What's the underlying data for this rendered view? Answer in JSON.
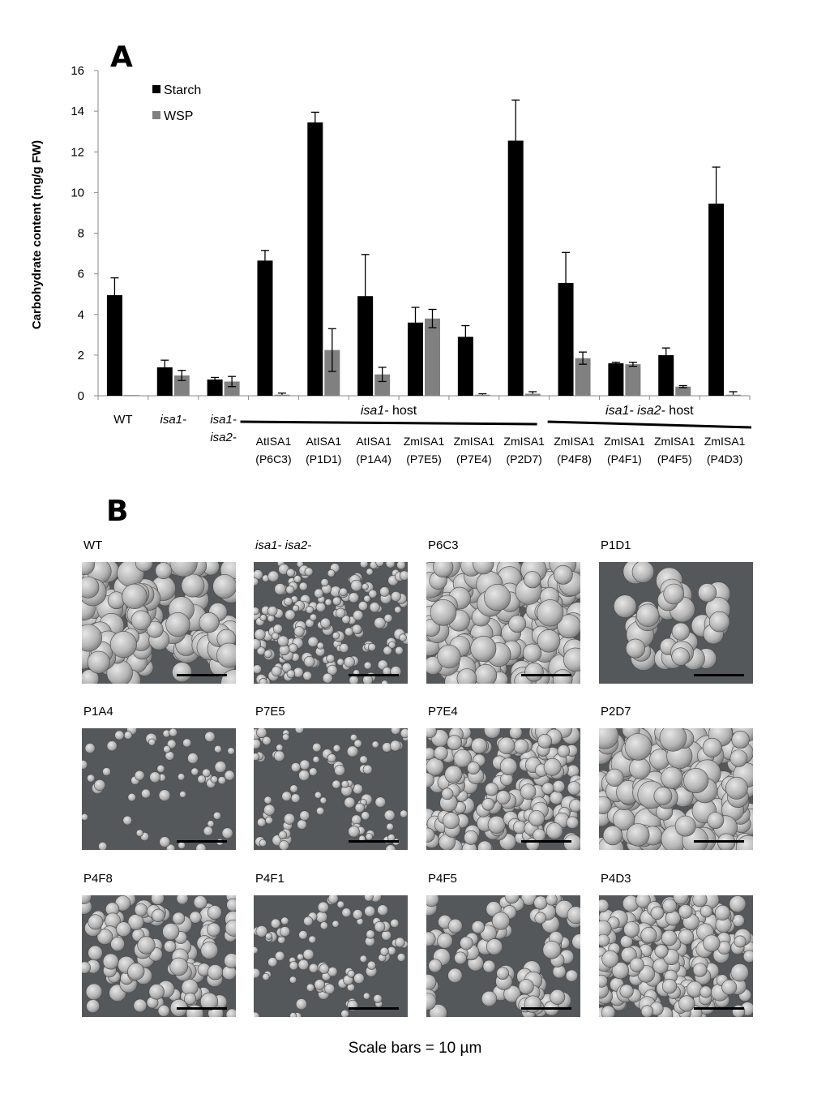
{
  "panel_a_letter": "A",
  "panel_b_letter": "B",
  "chart_data": {
    "type": "bar",
    "title": "",
    "ylabel": "Carbohydrate content (mg/g FW)",
    "ylim": [
      0,
      16
    ],
    "yticks": [
      0,
      2,
      4,
      6,
      8,
      10,
      12,
      14,
      16
    ],
    "legend_position": "top-left",
    "categories": [
      "WT",
      "isa1-",
      "isa1- isa2-",
      "AtISA1 (P6C3)",
      "AtISA1 (P1D1)",
      "AtISA1 (P1A4)",
      "ZmISA1 (P7E5)",
      "ZmISA1 (P7E4)",
      "ZmISA1 (P2D7)",
      "ZmISA1 (P4F8)",
      "ZmISA1 (P4F1)",
      "ZmISA1 (P4F5)",
      "ZmISA1 (P4D3)"
    ],
    "series": [
      {
        "name": "Starch",
        "color": "#000000",
        "values": [
          4.95,
          1.4,
          0.8,
          6.65,
          13.45,
          4.9,
          3.6,
          2.9,
          12.55,
          5.55,
          1.6,
          2.0,
          9.45
        ],
        "errors": [
          0.85,
          0.35,
          0.1,
          0.5,
          0.5,
          2.05,
          0.75,
          0.55,
          2.0,
          1.5,
          0.05,
          0.35,
          1.8
        ]
      },
      {
        "name": "WSP",
        "color": "#808080",
        "values": [
          0.0,
          1.0,
          0.7,
          0.05,
          2.25,
          1.05,
          3.8,
          0.05,
          0.1,
          1.85,
          1.55,
          0.45,
          0.05
        ],
        "errors": [
          0.0,
          0.25,
          0.25,
          0.08,
          1.05,
          0.35,
          0.45,
          0.05,
          0.1,
          0.3,
          0.1,
          0.05,
          0.15
        ]
      }
    ],
    "x_labels": [
      {
        "lines": [
          "WT"
        ],
        "italic": false
      },
      {
        "lines": [
          "isa1-"
        ],
        "italic": true
      },
      {
        "lines": [
          "isa1-",
          "isa2-"
        ],
        "italic": true
      },
      {
        "lines": [
          "AtISA1",
          "(P6C3)"
        ],
        "italic": false
      },
      {
        "lines": [
          "AtISA1",
          "(P1D1)"
        ],
        "italic": false
      },
      {
        "lines": [
          "AtISA1",
          "(P1A4)"
        ],
        "italic": false
      },
      {
        "lines": [
          "ZmISA1",
          "(P7E5)"
        ],
        "italic": false
      },
      {
        "lines": [
          "ZmISA1",
          "(P7E4)"
        ],
        "italic": false
      },
      {
        "lines": [
          "ZmISA1",
          "(P2D7)"
        ],
        "italic": false
      },
      {
        "lines": [
          "ZmISA1",
          "(P4F8)"
        ],
        "italic": false
      },
      {
        "lines": [
          "ZmISA1",
          "(P4F1)"
        ],
        "italic": false
      },
      {
        "lines": [
          "ZmISA1",
          "(P4F5)"
        ],
        "italic": false
      },
      {
        "lines": [
          "ZmISA1",
          "(P4D3)"
        ],
        "italic": false
      }
    ],
    "groups": [
      {
        "italic_part": "isa1-",
        "rest": " host",
        "from": 3,
        "to": 8
      },
      {
        "italic_part": "isa1-  isa2-",
        "rest": " host",
        "from": 9,
        "to": 12
      }
    ]
  },
  "micrographs": [
    {
      "label": "WT",
      "italic": false,
      "size": "large",
      "density": "medium",
      "seed": 11
    },
    {
      "label": "isa1- isa2-",
      "italic": true,
      "size": "small",
      "density": "dense",
      "seed": 23
    },
    {
      "label": "P6C3",
      "italic": false,
      "size": "large",
      "density": "dense",
      "seed": 37
    },
    {
      "label": "P1D1",
      "italic": false,
      "size": "large",
      "density": "cluster",
      "seed": 41
    },
    {
      "label": "P1A4",
      "italic": false,
      "size": "small",
      "density": "sparse",
      "seed": 53
    },
    {
      "label": "P7E5",
      "italic": false,
      "size": "small",
      "density": "patchy",
      "seed": 67
    },
    {
      "label": "P7E4",
      "italic": false,
      "size": "medium",
      "density": "dense",
      "seed": 71
    },
    {
      "label": "P2D7",
      "italic": false,
      "size": "large",
      "density": "dense",
      "seed": 83
    },
    {
      "label": "P4F8",
      "italic": false,
      "size": "medium",
      "density": "medium",
      "seed": 97
    },
    {
      "label": "P4F1",
      "italic": false,
      "size": "small",
      "density": "patchy",
      "seed": 101
    },
    {
      "label": "P4F5",
      "italic": false,
      "size": "medium",
      "density": "patchy",
      "seed": 113
    },
    {
      "label": "P4D3",
      "italic": false,
      "size": "medium",
      "density": "dense",
      "seed": 127
    }
  ],
  "footer_text": "Scale bars = 10 µm"
}
